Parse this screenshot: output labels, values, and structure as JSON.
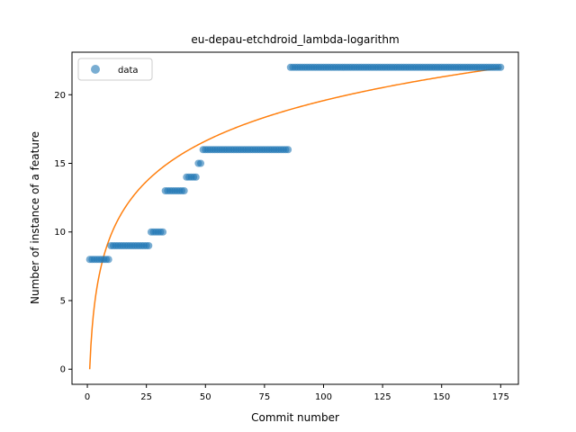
{
  "chart_data": {
    "type": "scatter",
    "title": "eu-depau-etchdroid_lambda-logarithm",
    "xlabel": "Commit number",
    "ylabel": "Number of instance of a feature",
    "xlim": [
      -6.5,
      182.5
    ],
    "ylim": [
      -1.1,
      23.1
    ],
    "xticks": [
      0,
      25,
      50,
      75,
      100,
      125,
      150,
      175
    ],
    "yticks": [
      0,
      5,
      10,
      15,
      20
    ],
    "grid": false,
    "legend": {
      "placement": "top-left",
      "entries": [
        "data"
      ]
    },
    "colors": {
      "data": "#1f77b4",
      "fit": "#ff7f0e"
    },
    "series": [
      {
        "name": "data",
        "kind": "scatter",
        "segments": [
          {
            "x_start": 1,
            "x_end": 9,
            "y": 8
          },
          {
            "x_start": 10,
            "x_end": 26,
            "y": 9
          },
          {
            "x_start": 27,
            "x_end": 32,
            "y": 10
          },
          {
            "x_start": 33,
            "x_end": 41,
            "y": 13
          },
          {
            "x_start": 42,
            "x_end": 46,
            "y": 14
          },
          {
            "x_start": 47,
            "x_end": 48,
            "y": 15
          },
          {
            "x_start": 49,
            "x_end": 85,
            "y": 16
          },
          {
            "x_start": 86,
            "x_end": 175,
            "y": 22
          }
        ]
      },
      {
        "kind": "line",
        "x_range": [
          1,
          175
        ],
        "model": "logarithm",
        "a": 4.25,
        "b": 0
      }
    ]
  }
}
